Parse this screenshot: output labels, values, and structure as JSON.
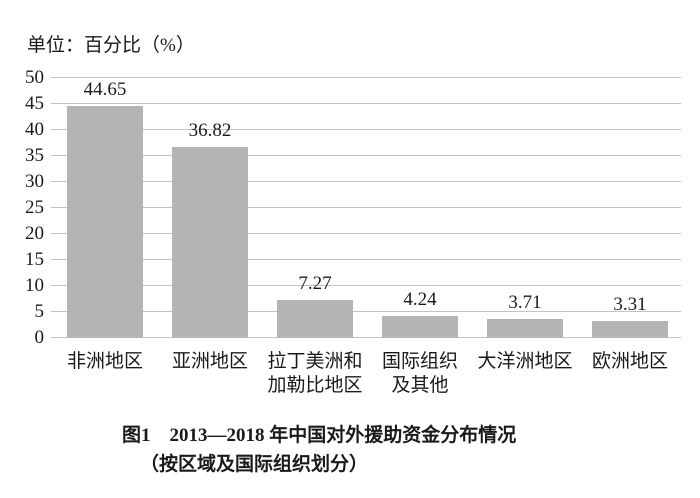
{
  "figure": {
    "unit_label": "单位：百分比（%）",
    "caption_line1": "图1　2013—2018 年中国对外援助资金分布情况",
    "caption_line2": "（按区域及国际组织划分）"
  },
  "chart_data": {
    "type": "bar",
    "title": "图1 2013—2018年中国对外援助资金分布情况（按区域及国际组织划分）",
    "ylabel": "单位：百分比（%）",
    "xlabel": "",
    "categories": [
      "非洲地区",
      "亚洲地区",
      "拉丁美洲和加勒比地区",
      "国际组织及其他",
      "大洋洲地区",
      "欧洲地区"
    ],
    "category_label_lines": [
      [
        "非洲地区"
      ],
      [
        "亚洲地区"
      ],
      [
        "拉丁美洲和",
        "加勒比地区"
      ],
      [
        "国际组织",
        "及其他"
      ],
      [
        "大洋洲地区"
      ],
      [
        "欧洲地区"
      ]
    ],
    "values": [
      44.65,
      36.82,
      7.27,
      4.24,
      3.71,
      3.31
    ],
    "data_labels": [
      "44.65",
      "36.82",
      "7.27",
      "4.24",
      "3.71",
      "3.31"
    ],
    "ylim": [
      0,
      50
    ],
    "ytick_step": 5,
    "yticks": [
      0,
      5,
      10,
      15,
      20,
      25,
      30,
      35,
      40,
      45,
      50
    ],
    "grid": true,
    "legend": "none",
    "bar_color": "#b4b4b4",
    "gridline_color": "#c2c2c2",
    "text_color": "#1a1a1a",
    "background_color": "#ffffff"
  }
}
